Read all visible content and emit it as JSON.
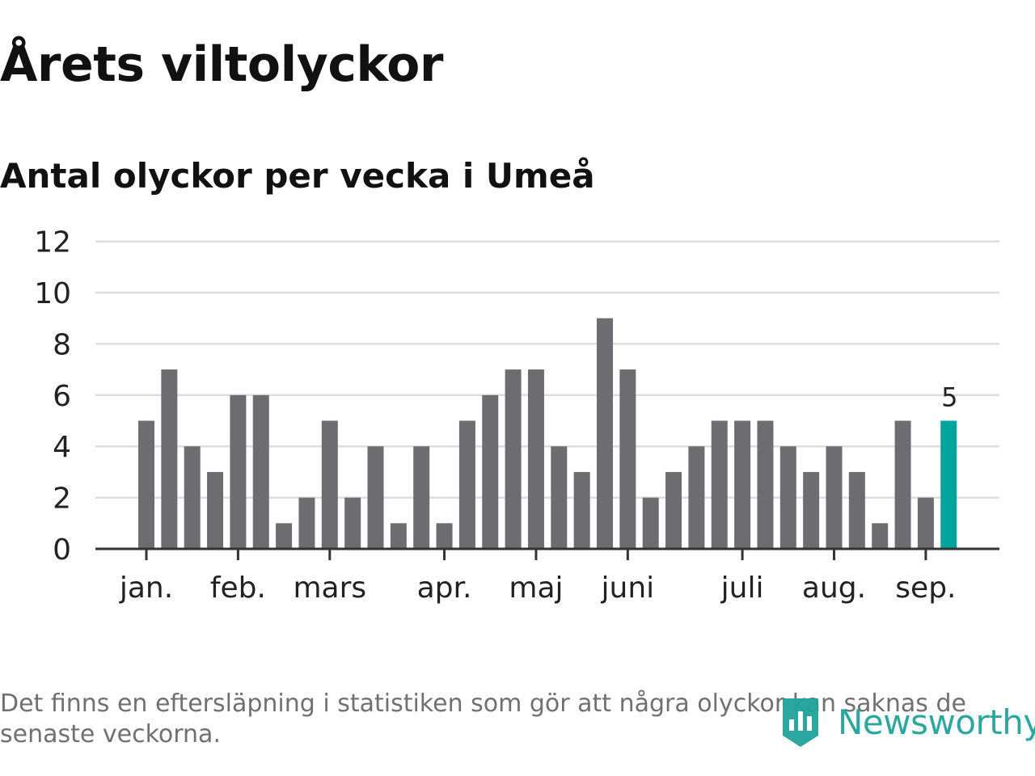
{
  "title": "Årets viltolyckor",
  "subtitle": "Antal olyckor per vecka i Umeå",
  "footnote": "Det finns en eftersläpning i statistiken som gör att några olyckor kan saknas de senaste veckorna.",
  "logo": {
    "text": "Newsworthy",
    "icon": "newsworthy-logo-icon",
    "color": "#21a39b"
  },
  "colors": {
    "bar": "#6d6c71",
    "highlight": "#00a49a",
    "grid": "#dddddd",
    "axis": "#333333",
    "text": "#222222"
  },
  "chart_data": {
    "type": "bar",
    "title": "Antal olyckor per vecka i Umeå",
    "xlabel": "",
    "ylabel": "",
    "ylim": [
      0,
      12
    ],
    "yticks": [
      0,
      2,
      4,
      6,
      8,
      10,
      12
    ],
    "grid": true,
    "month_ticks": [
      {
        "label": "jan.",
        "week": 1
      },
      {
        "label": "feb.",
        "week": 5
      },
      {
        "label": "mars",
        "week": 9
      },
      {
        "label": "apr.",
        "week": 14
      },
      {
        "label": "maj",
        "week": 18
      },
      {
        "label": "juni",
        "week": 22
      },
      {
        "label": "juli",
        "week": 27
      },
      {
        "label": "aug.",
        "week": 31
      },
      {
        "label": "sep.",
        "week": 35
      }
    ],
    "weeks": [
      1,
      2,
      3,
      4,
      5,
      6,
      7,
      8,
      9,
      10,
      11,
      12,
      13,
      14,
      15,
      16,
      17,
      18,
      19,
      20,
      21,
      22,
      23,
      24,
      25,
      26,
      27,
      28,
      29,
      30,
      31,
      32,
      33,
      34,
      35,
      36
    ],
    "values": [
      5,
      7,
      4,
      3,
      6,
      6,
      1,
      2,
      5,
      2,
      4,
      1,
      4,
      1,
      5,
      6,
      7,
      7,
      4,
      3,
      9,
      7,
      2,
      3,
      4,
      5,
      5,
      5,
      4,
      3,
      4,
      3,
      1,
      5,
      2,
      5
    ],
    "highlight_last": true,
    "annotation": {
      "text": "5",
      "week": 36
    }
  }
}
